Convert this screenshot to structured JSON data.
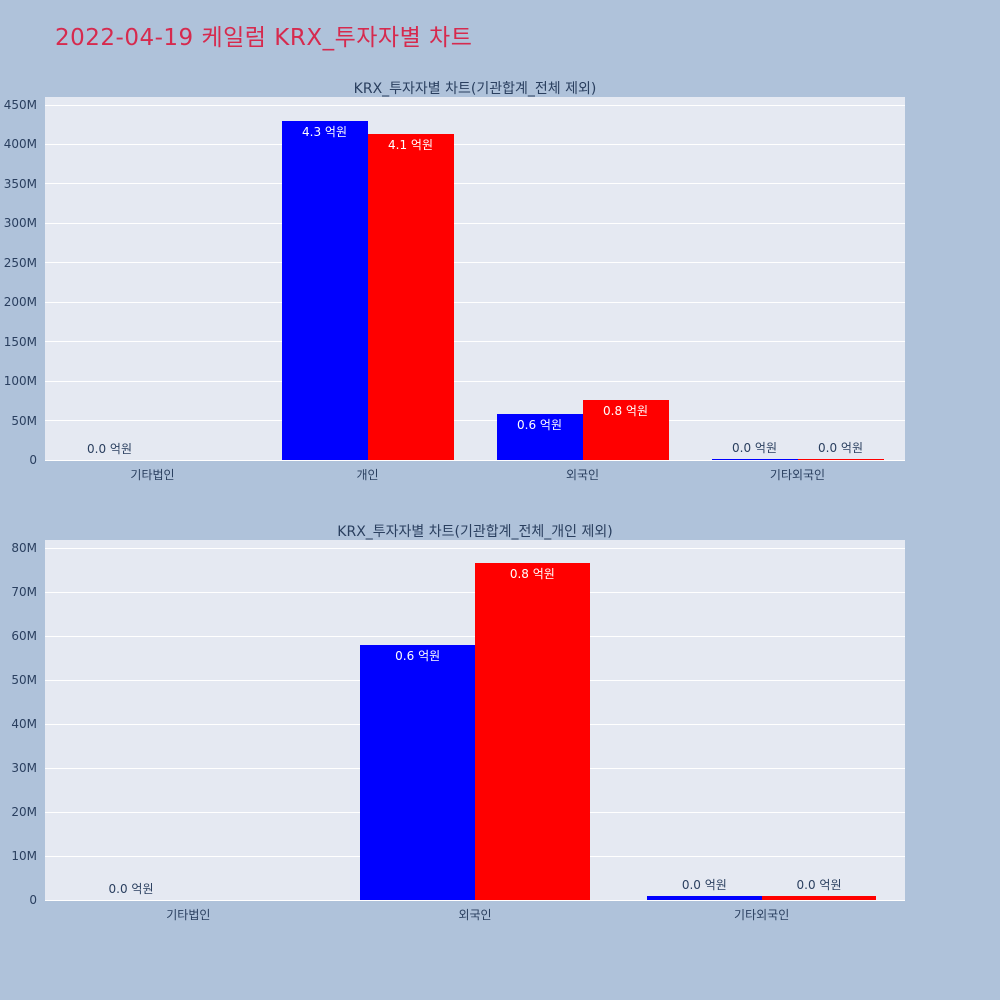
{
  "page": {
    "title": "2022-04-19 케일럼 KRX_투자자별 차트",
    "title_color": "#d62a4e",
    "background_color": "#afc2da",
    "plot_background_color": "#e5e9f2",
    "axis_text_color": "#2a3f5f"
  },
  "chart_data": [
    {
      "type": "bar",
      "title": "KRX_투자자별 차트(기관합계_전체 제외)",
      "value_unit": "M",
      "ylim": [
        0,
        450
      ],
      "ytick_step": 50,
      "ytick_labels": [
        "0",
        "50M",
        "100M",
        "150M",
        "200M",
        "250M",
        "300M",
        "350M",
        "400M",
        "450M"
      ],
      "categories": [
        "기타법인",
        "개인",
        "외국인",
        "기타외국인"
      ],
      "grid": true,
      "legend": "none",
      "series": [
        {
          "name": "series-blue",
          "color": "#0000ff",
          "values": [
            0,
            430,
            58,
            1
          ],
          "labels": [
            "0.0 억원",
            "4.3 억원",
            "0.6 억원",
            "0.0 억원"
          ]
        },
        {
          "name": "series-red",
          "color": "#ff0000",
          "values": [
            0,
            413,
            76.5,
            1
          ],
          "labels": [
            null,
            "4.1 억원",
            "0.8 억원",
            "0.0 억원"
          ]
        }
      ]
    },
    {
      "type": "bar",
      "title": "KRX_투자자별 차트(기관합계_전체_개인 제외)",
      "value_unit": "M",
      "ylim": [
        0,
        80
      ],
      "ytick_step": 10,
      "ytick_labels": [
        "0",
        "10M",
        "20M",
        "30M",
        "40M",
        "50M",
        "60M",
        "70M",
        "80M"
      ],
      "categories": [
        "기타법인",
        "외국인",
        "기타외국인"
      ],
      "grid": true,
      "legend": "none",
      "series": [
        {
          "name": "series-blue",
          "color": "#0000ff",
          "values": [
            0,
            58,
            1
          ],
          "labels": [
            "0.0 억원",
            "0.6 억원",
            "0.0 억원"
          ]
        },
        {
          "name": "series-red",
          "color": "#ff0000",
          "values": [
            0,
            76.5,
            1
          ],
          "labels": [
            null,
            "0.8 억원",
            "0.0 억원"
          ]
        }
      ]
    }
  ]
}
